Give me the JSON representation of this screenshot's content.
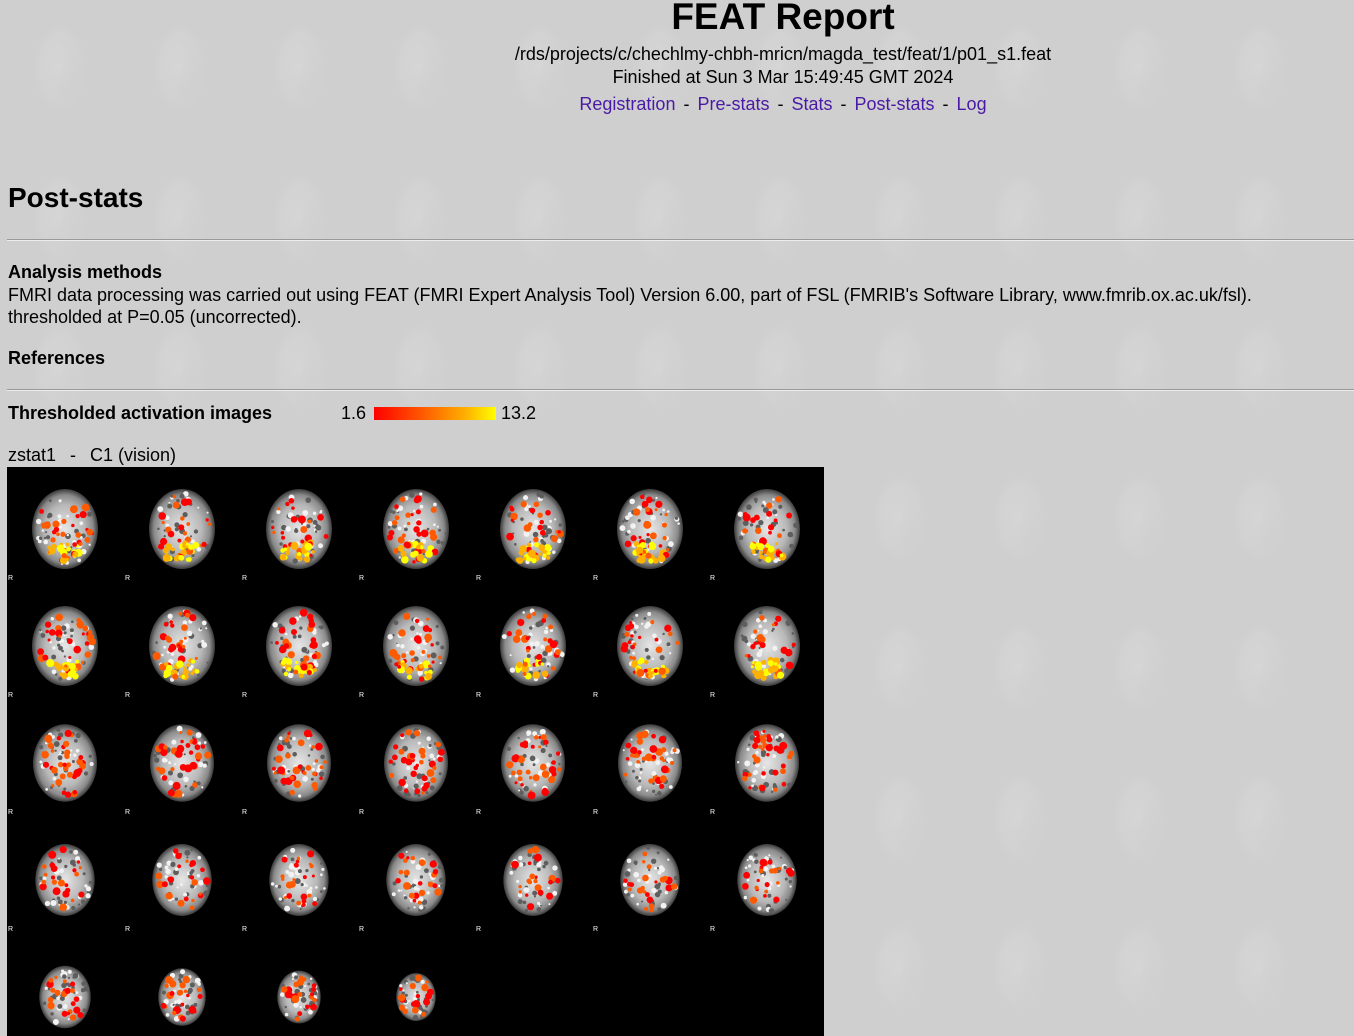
{
  "header": {
    "title": "FEAT Report",
    "path": "/rds/projects/c/chechlmy-chbh-mricn/magda_test/feat/1/p01_s1.feat",
    "finished": "Finished at Sun 3 Mar 15:49:45 GMT 2024"
  },
  "nav": {
    "links": [
      "Registration",
      "Pre-stats",
      "Stats",
      "Post-stats",
      "Log"
    ],
    "separator": "-"
  },
  "page": {
    "section_title": "Post-stats"
  },
  "analysis": {
    "title": "Analysis methods",
    "line1": "FMRI data processing was carried out using FEAT (FMRI Expert Analysis Tool) Version 6.00, part of FSL (FMRIB's Software Library, www.fmrib.ox.ac.uk/fsl).",
    "line2": "thresholded at P=0.05 (uncorrected)."
  },
  "references": {
    "title": "References"
  },
  "activation": {
    "title": "Thresholded activation images",
    "scale_min": "1.6",
    "scale_max": "13.2",
    "colors": [
      "#ff0000",
      "#ff5a00",
      "#ffb000",
      "#ffff00"
    ]
  },
  "zstat": {
    "name": "zstat1",
    "separator": "-",
    "contrast": "C1 (vision)"
  },
  "montage": {
    "columns": 7,
    "slice_count": 32,
    "orientation_label": "R"
  }
}
